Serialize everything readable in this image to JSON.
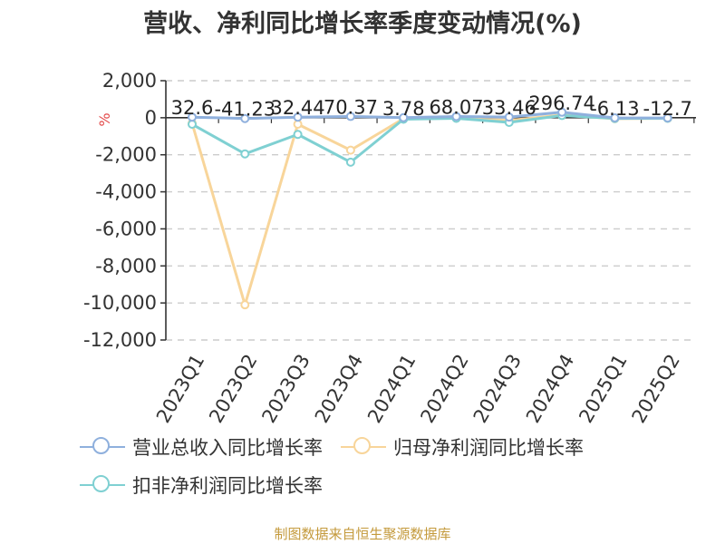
{
  "title": "营收、净利同比增长率季度变动情况(%)",
  "source": "制图数据来自恒生聚源数据库",
  "colors": {
    "revenue": "#8fb0dd",
    "net_profit": "#f8d59a",
    "deducted_net_profit": "#7fd0d2",
    "unit_label": "#e34a4a",
    "grid": "#cccccc",
    "axis": "#333333"
  },
  "chart_data": {
    "type": "line",
    "title": "营收、净利同比增长率季度变动情况(%)",
    "ylabel": "%",
    "ylim": [
      -12000,
      2000
    ],
    "yticks": [
      2000,
      0,
      -2000,
      -4000,
      -6000,
      -8000,
      -10000,
      -12000
    ],
    "ytick_labels": [
      "2,000",
      "0",
      "-2,000",
      "-4,000",
      "-6,000",
      "-8,000",
      "-10,000",
      "-12,000"
    ],
    "categories": [
      "2023Q1",
      "2023Q2",
      "2023Q3",
      "2023Q4",
      "2024Q1",
      "2024Q2",
      "2024Q3",
      "2024Q4",
      "2025Q1",
      "2025Q2"
    ],
    "grid": true,
    "legend_position": "bottom",
    "series": [
      {
        "name": "营业总收入同比增长率",
        "values": [
          32.6,
          -41.23,
          32.44,
          70.37,
          3.78,
          68.07,
          33.46,
          296.74,
          -6.13,
          -12.7
        ],
        "labels": [
          "32.6",
          "-41.23",
          "32.44",
          "70.37",
          "3.78",
          "68.07",
          "33.46",
          "296.74",
          "-6.13",
          "-12.7"
        ],
        "color": "#8fb0dd"
      },
      {
        "name": "归母净利润同比增长率",
        "values": [
          -300,
          -10100,
          -350,
          -1750,
          -50,
          -20,
          -150,
          150,
          -50,
          -30
        ],
        "color": "#f8d59a"
      },
      {
        "name": "扣非净利润同比增长率",
        "values": [
          -350,
          -1950,
          -900,
          -2400,
          -80,
          -30,
          -250,
          120,
          -40,
          -30
        ],
        "color": "#7fd0d2"
      }
    ]
  }
}
